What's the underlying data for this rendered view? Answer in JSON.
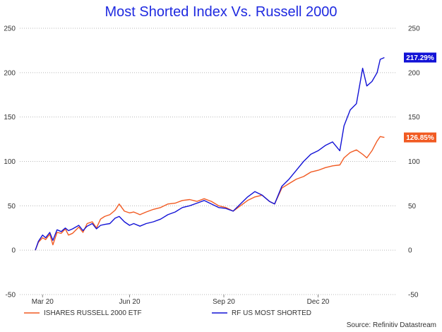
{
  "title": "Most Shorted Index Vs. Russell 2000",
  "source": "Source: Refinitiv Datastream",
  "chart_data": {
    "type": "line",
    "title": "Most Shorted Index Vs. Russell 2000",
    "ylim": [
      -50,
      250
    ],
    "yticks": [
      250,
      200,
      150,
      100,
      50,
      0,
      -50
    ],
    "ytick_labels": [
      "250",
      "200",
      "150",
      "100",
      "50",
      "0",
      "-50"
    ],
    "xlim": [
      "2020-03-01",
      "2021-02-28"
    ],
    "xticks": [
      {
        "label": "Mar 20",
        "date": "2020-03-23"
      },
      {
        "label": "Jun 20",
        "date": "2020-06-15"
      },
      {
        "label": "Sep 20",
        "date": "2020-09-14"
      },
      {
        "label": "Dec 20",
        "date": "2020-12-14"
      }
    ],
    "grid": true,
    "legend_position": "bottom",
    "series": [
      {
        "name": "ISHARES RUSSELL 2000 ETF",
        "color": "#f15a22",
        "end_label": "126.85%",
        "points": [
          [
            "2020-03-16",
            0
          ],
          [
            "2020-03-19",
            9
          ],
          [
            "2020-03-23",
            14
          ],
          [
            "2020-03-26",
            12
          ],
          [
            "2020-03-30",
            18
          ],
          [
            "2020-04-02",
            6
          ],
          [
            "2020-04-06",
            20
          ],
          [
            "2020-04-10",
            19
          ],
          [
            "2020-04-14",
            24
          ],
          [
            "2020-04-17",
            17
          ],
          [
            "2020-04-21",
            19
          ],
          [
            "2020-04-27",
            26
          ],
          [
            "2020-05-01",
            20
          ],
          [
            "2020-05-05",
            30
          ],
          [
            "2020-05-10",
            32
          ],
          [
            "2020-05-14",
            25
          ],
          [
            "2020-05-18",
            35
          ],
          [
            "2020-05-22",
            38
          ],
          [
            "2020-05-27",
            40
          ],
          [
            "2020-06-01",
            45
          ],
          [
            "2020-06-05",
            52
          ],
          [
            "2020-06-10",
            44
          ],
          [
            "2020-06-15",
            42
          ],
          [
            "2020-06-19",
            43
          ],
          [
            "2020-06-25",
            40
          ],
          [
            "2020-07-01",
            43
          ],
          [
            "2020-07-08",
            46
          ],
          [
            "2020-07-15",
            48
          ],
          [
            "2020-07-22",
            52
          ],
          [
            "2020-07-29",
            53
          ],
          [
            "2020-08-05",
            56
          ],
          [
            "2020-08-12",
            57
          ],
          [
            "2020-08-19",
            55
          ],
          [
            "2020-08-26",
            58
          ],
          [
            "2020-09-02",
            55
          ],
          [
            "2020-09-09",
            50
          ],
          [
            "2020-09-16",
            48
          ],
          [
            "2020-09-23",
            44
          ],
          [
            "2020-09-30",
            50
          ],
          [
            "2020-10-07",
            56
          ],
          [
            "2020-10-14",
            60
          ],
          [
            "2020-10-21",
            62
          ],
          [
            "2020-10-28",
            55
          ],
          [
            "2020-11-02",
            52
          ],
          [
            "2020-11-09",
            70
          ],
          [
            "2020-11-16",
            75
          ],
          [
            "2020-11-23",
            80
          ],
          [
            "2020-11-30",
            83
          ],
          [
            "2020-12-07",
            88
          ],
          [
            "2020-12-14",
            90
          ],
          [
            "2020-12-21",
            93
          ],
          [
            "2020-12-28",
            95
          ],
          [
            "2021-01-04",
            96
          ],
          [
            "2021-01-08",
            104
          ],
          [
            "2021-01-14",
            110
          ],
          [
            "2021-01-20",
            113
          ],
          [
            "2021-01-26",
            108
          ],
          [
            "2021-01-30",
            104
          ],
          [
            "2021-02-04",
            112
          ],
          [
            "2021-02-09",
            123
          ],
          [
            "2021-02-12",
            128
          ],
          [
            "2021-02-16",
            127
          ]
        ]
      },
      {
        "name": "RF US MOST SHORTED",
        "color": "#1212d6",
        "end_label": "217.29%",
        "points": [
          [
            "2020-03-16",
            0
          ],
          [
            "2020-03-19",
            10
          ],
          [
            "2020-03-23",
            17
          ],
          [
            "2020-03-26",
            14
          ],
          [
            "2020-03-30",
            20
          ],
          [
            "2020-04-02",
            11
          ],
          [
            "2020-04-06",
            23
          ],
          [
            "2020-04-10",
            21
          ],
          [
            "2020-04-14",
            25
          ],
          [
            "2020-04-17",
            22
          ],
          [
            "2020-04-21",
            24
          ],
          [
            "2020-04-27",
            28
          ],
          [
            "2020-05-01",
            22
          ],
          [
            "2020-05-05",
            27
          ],
          [
            "2020-05-10",
            30
          ],
          [
            "2020-05-14",
            24
          ],
          [
            "2020-05-18",
            28
          ],
          [
            "2020-05-22",
            29
          ],
          [
            "2020-05-27",
            30
          ],
          [
            "2020-06-01",
            36
          ],
          [
            "2020-06-05",
            38
          ],
          [
            "2020-06-10",
            32
          ],
          [
            "2020-06-15",
            28
          ],
          [
            "2020-06-19",
            30
          ],
          [
            "2020-06-25",
            27
          ],
          [
            "2020-07-01",
            30
          ],
          [
            "2020-07-08",
            32
          ],
          [
            "2020-07-15",
            35
          ],
          [
            "2020-07-22",
            40
          ],
          [
            "2020-07-29",
            43
          ],
          [
            "2020-08-05",
            48
          ],
          [
            "2020-08-12",
            50
          ],
          [
            "2020-08-19",
            53
          ],
          [
            "2020-08-26",
            56
          ],
          [
            "2020-09-02",
            52
          ],
          [
            "2020-09-09",
            48
          ],
          [
            "2020-09-16",
            47
          ],
          [
            "2020-09-23",
            44
          ],
          [
            "2020-09-30",
            52
          ],
          [
            "2020-10-07",
            60
          ],
          [
            "2020-10-14",
            66
          ],
          [
            "2020-10-21",
            62
          ],
          [
            "2020-10-28",
            55
          ],
          [
            "2020-11-02",
            52
          ],
          [
            "2020-11-09",
            72
          ],
          [
            "2020-11-16",
            80
          ],
          [
            "2020-11-23",
            90
          ],
          [
            "2020-11-30",
            100
          ],
          [
            "2020-12-07",
            108
          ],
          [
            "2020-12-14",
            112
          ],
          [
            "2020-12-21",
            118
          ],
          [
            "2020-12-28",
            122
          ],
          [
            "2021-01-04",
            112
          ],
          [
            "2021-01-08",
            140
          ],
          [
            "2021-01-14",
            158
          ],
          [
            "2021-01-20",
            165
          ],
          [
            "2021-01-26",
            205
          ],
          [
            "2021-01-30",
            185
          ],
          [
            "2021-02-04",
            190
          ],
          [
            "2021-02-09",
            200
          ],
          [
            "2021-02-12",
            215
          ],
          [
            "2021-02-16",
            217
          ]
        ]
      }
    ]
  }
}
